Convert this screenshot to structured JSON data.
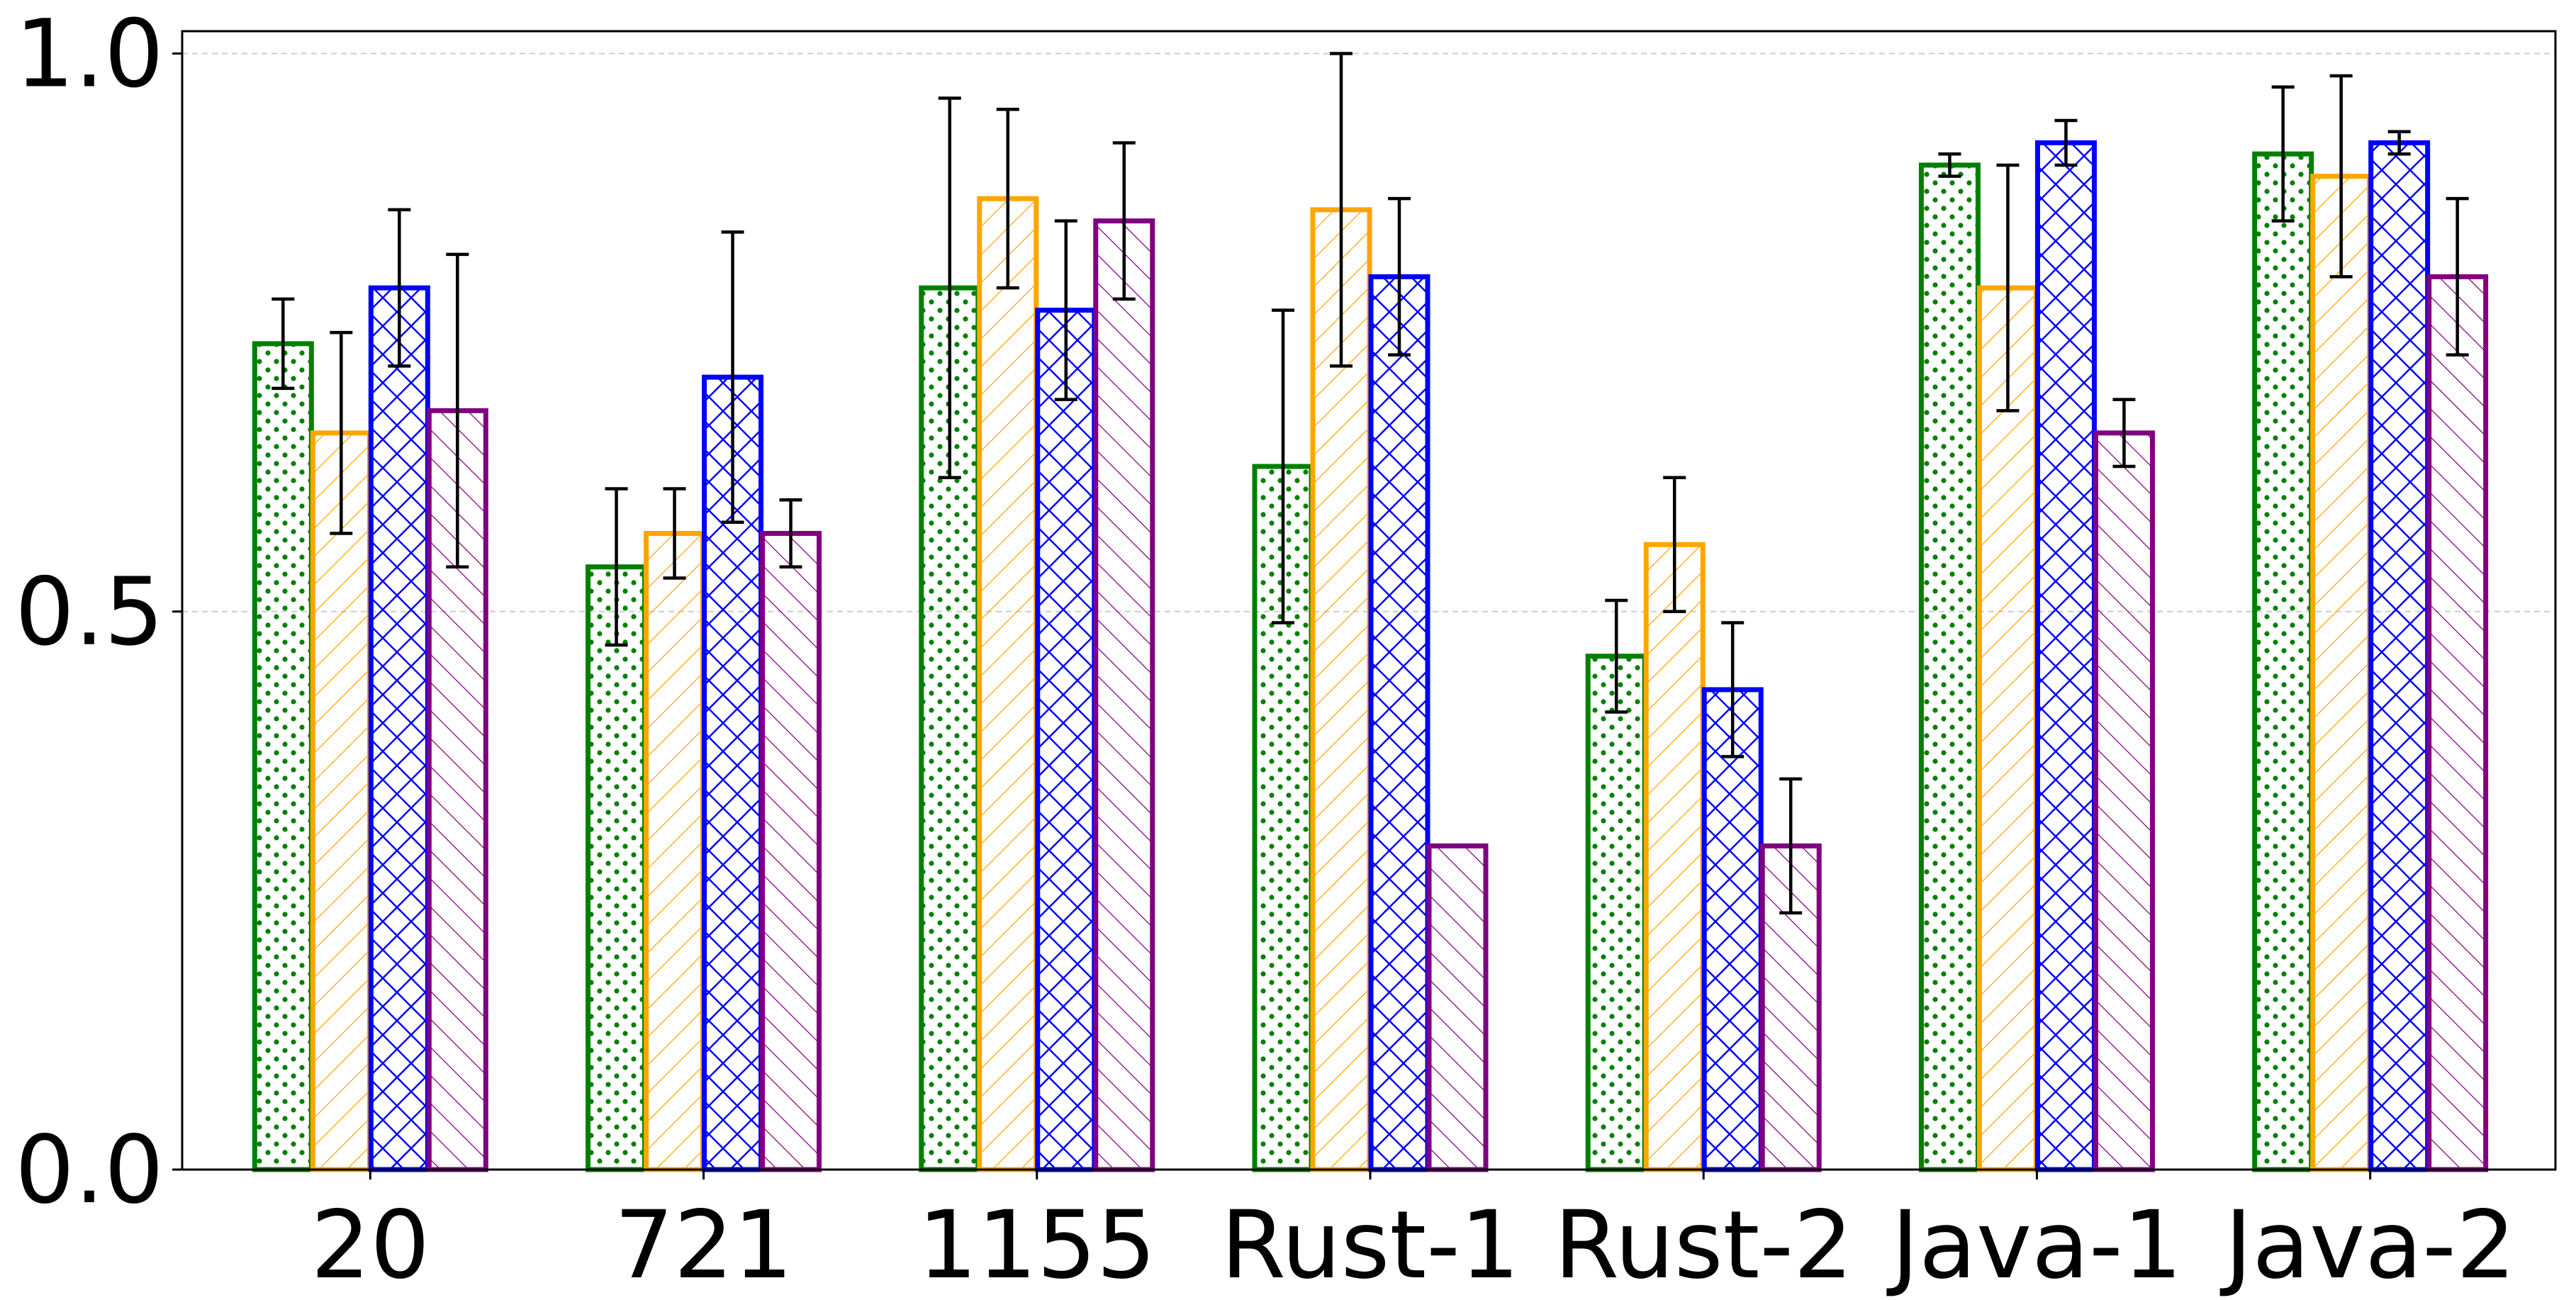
{
  "chart_data": {
    "type": "bar",
    "title": "",
    "xlabel": "",
    "ylabel": "",
    "ylim": [
      0,
      1.02
    ],
    "yticks": [
      "0.0",
      "0.5",
      "1.0"
    ],
    "grid": "horizontal dashed",
    "categories": [
      "20",
      "721",
      "1155",
      "Rust-1",
      "Rust-2",
      "Java-1",
      "Java-2"
    ],
    "series": [
      {
        "color": "#008000",
        "hatch": "dots",
        "values": [
          0.74,
          0.54,
          0.79,
          0.63,
          0.46,
          0.9,
          0.91
        ],
        "err_low": [
          0.7,
          0.47,
          0.62,
          0.49,
          0.41,
          0.89,
          0.85
        ],
        "err_high": [
          0.78,
          0.61,
          0.96,
          0.77,
          0.51,
          0.91,
          0.97
        ]
      },
      {
        "color": "#FFA500",
        "hatch": "forward-diagonal",
        "values": [
          0.66,
          0.57,
          0.87,
          0.86,
          0.56,
          0.79,
          0.89
        ],
        "err_low": [
          0.57,
          0.53,
          0.79,
          0.72,
          0.5,
          0.68,
          0.8
        ],
        "err_high": [
          0.75,
          0.61,
          0.95,
          1.0,
          0.62,
          0.9,
          0.98
        ]
      },
      {
        "color": "#0000FF",
        "hatch": "crosshatch",
        "values": [
          0.79,
          0.71,
          0.77,
          0.8,
          0.43,
          0.92,
          0.92
        ],
        "err_low": [
          0.72,
          0.58,
          0.69,
          0.73,
          0.37,
          0.9,
          0.91
        ],
        "err_high": [
          0.86,
          0.84,
          0.85,
          0.87,
          0.49,
          0.94,
          0.93
        ]
      },
      {
        "color": "#800080",
        "hatch": "back-diagonal",
        "values": [
          0.68,
          0.57,
          0.85,
          0.29,
          0.29,
          0.66,
          0.8
        ],
        "err_low": [
          0.54,
          0.54,
          0.78,
          null,
          0.23,
          0.63,
          0.73
        ],
        "err_high": [
          0.82,
          0.6,
          0.92,
          null,
          0.35,
          0.69,
          0.87
        ]
      }
    ]
  }
}
